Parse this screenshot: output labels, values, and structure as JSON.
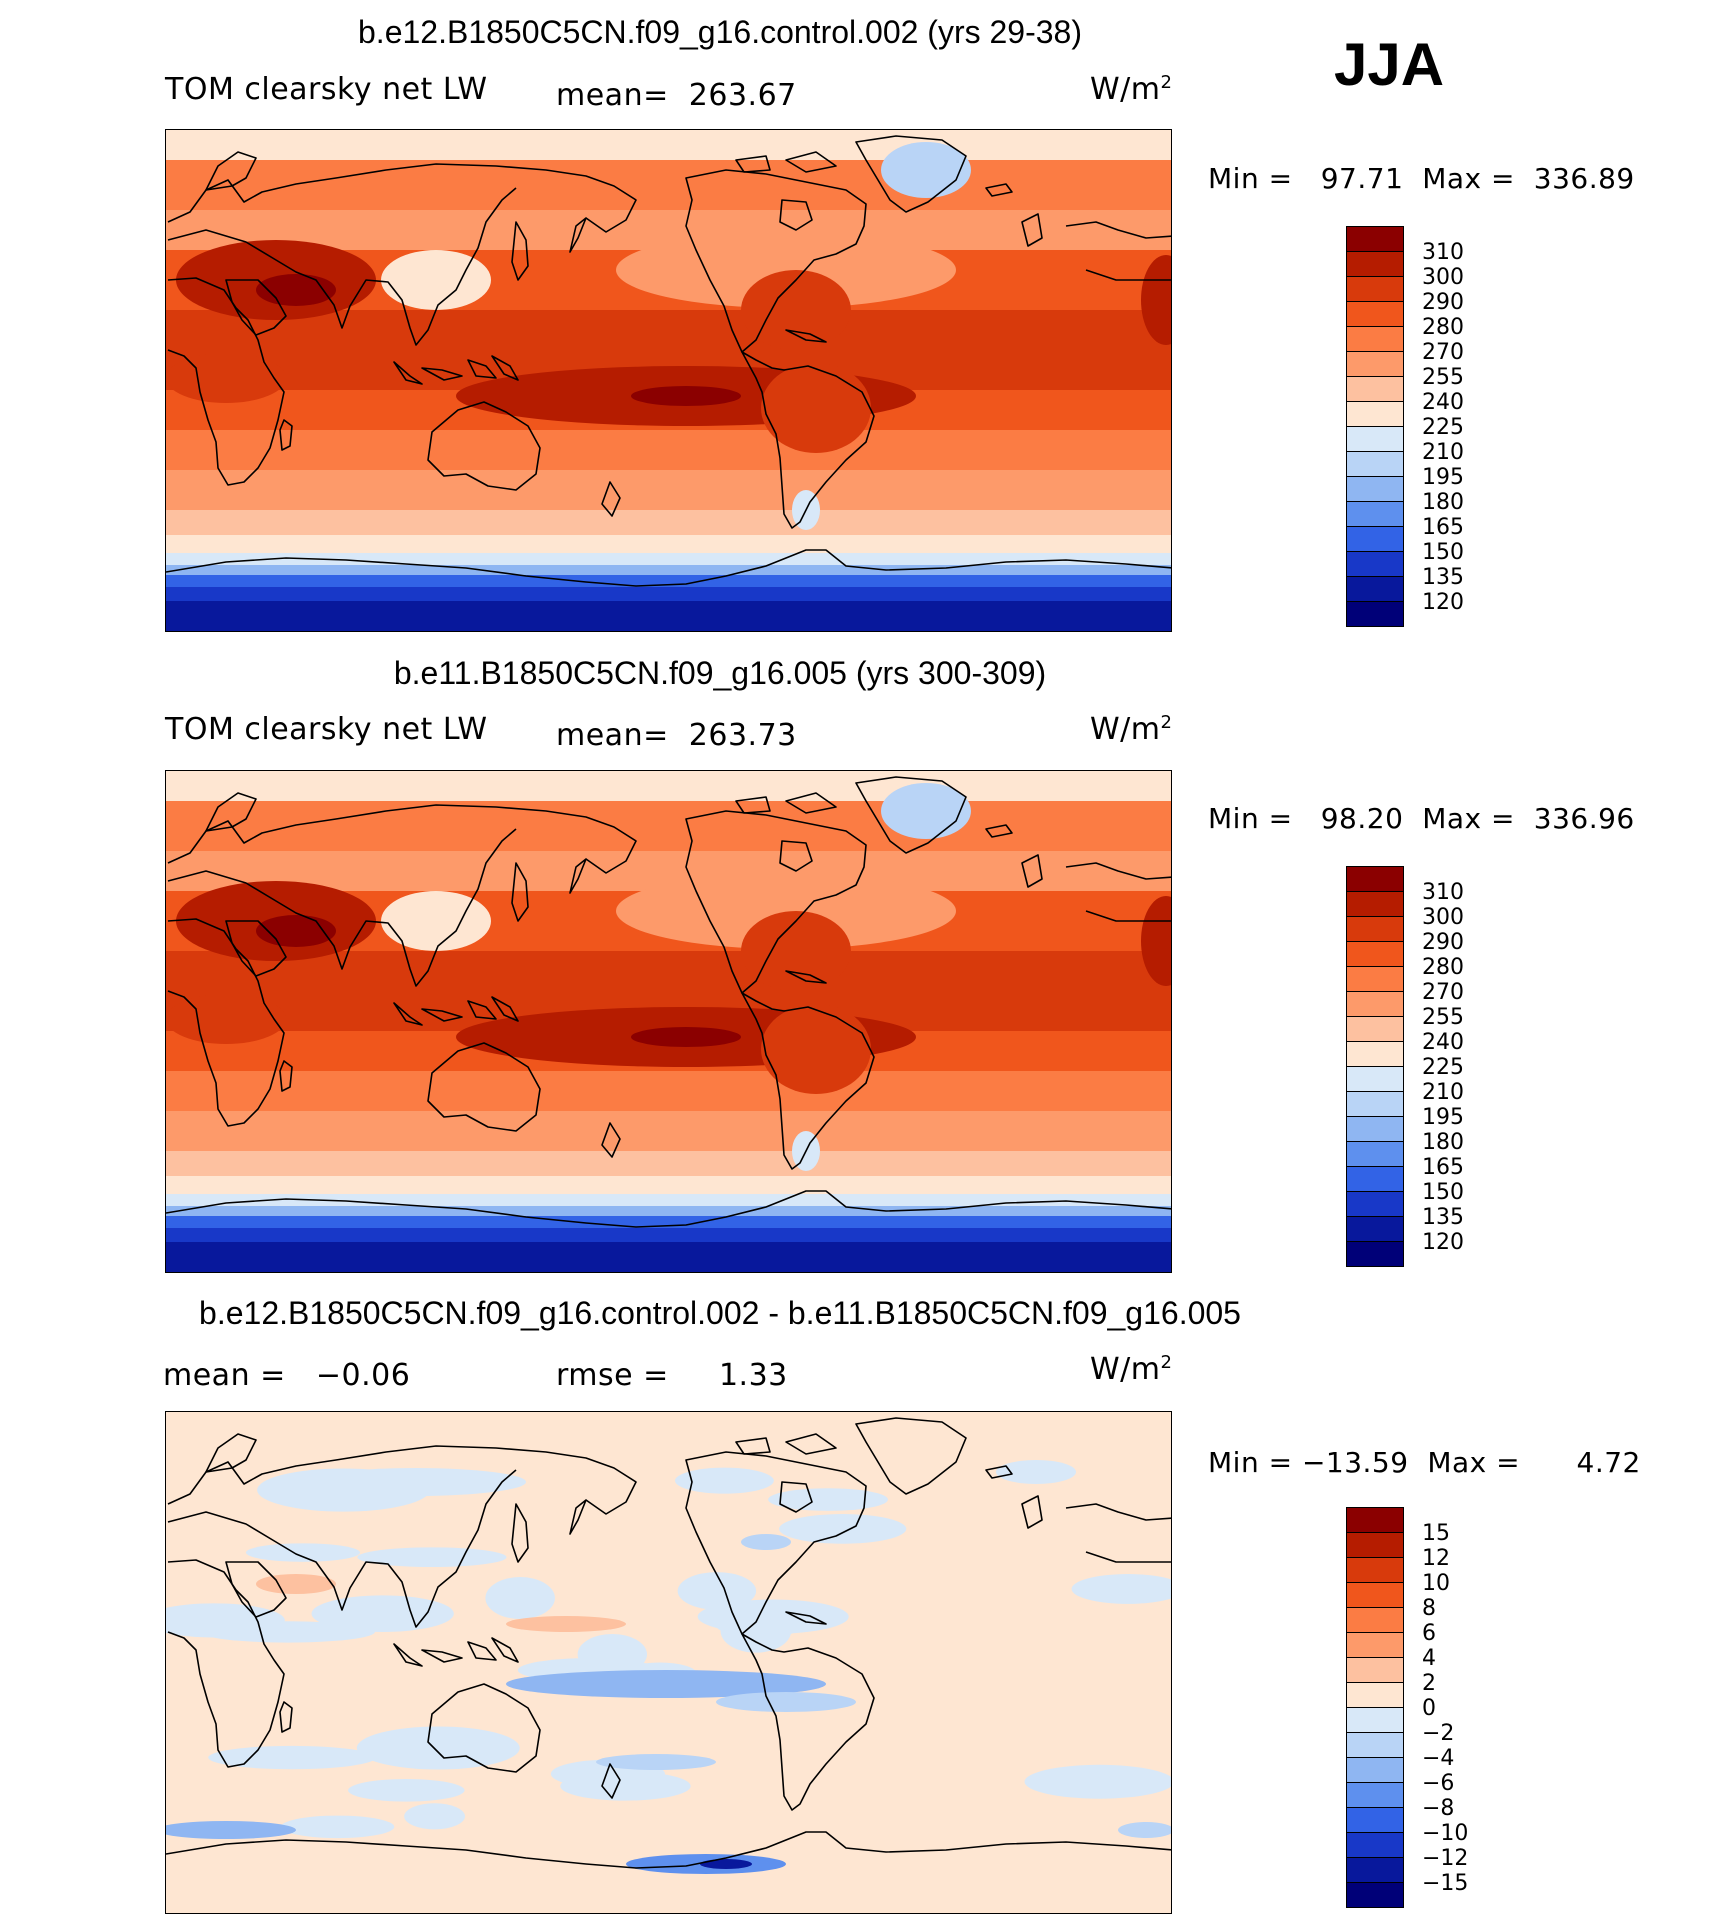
{
  "season": "JJA",
  "panels": [
    {
      "title": "b.e12.B1850C5CN.f09_g16.control.002 (yrs 29-38)",
      "left_label": "TOM clearsky net LW",
      "mid_label": "mean=  263.67",
      "units": "W/m",
      "units_sup": "2",
      "minmax": "Min =   97.71  Max =  336.89"
    },
    {
      "title": "b.e11.B1850C5CN.f09_g16.005 (yrs 300-309)",
      "left_label": "TOM clearsky net LW",
      "mid_label": "mean=  263.73",
      "units": "W/m",
      "units_sup": "2",
      "minmax": "Min =   98.20  Max =  336.96"
    },
    {
      "title": "b.e12.B1850C5CN.f09_g16.control.002 - b.e11.B1850C5CN.f09_g16.005",
      "left_label": "mean =   −0.06",
      "mid_label": "rmse =     1.33",
      "units": "W/m",
      "units_sup": "2",
      "minmax": "Min = −13.59  Max =      4.72"
    }
  ],
  "chart_data": [
    {
      "type": "heatmap",
      "title": "b.e12.B1850C5CN.f09_g16.control.002 (yrs 29-38)",
      "variable": "TOM clearsky net LW",
      "units": "W/m2",
      "mean": 263.67,
      "min": 97.71,
      "max": 336.89,
      "colorbar_levels": [
        "310",
        "300",
        "290",
        "280",
        "270",
        "255",
        "240",
        "225",
        "210",
        "195",
        "180",
        "165",
        "150",
        "135",
        "120"
      ],
      "colorbar_colors": [
        "#8b0000",
        "#b51c00",
        "#d83a0c",
        "#f0561c",
        "#fb7c44",
        "#fd9a6a",
        "#fdc1a0",
        "#fee6d2",
        "#d8e8f8",
        "#b9d4f6",
        "#8fb6f2",
        "#5e90ee",
        "#3263e6",
        "#1838c8",
        "#08189c",
        "#000078"
      ],
      "field_levels": {
        "north_polar": 225,
        "north_mid": 255,
        "subtropics": 280,
        "tropics": 290,
        "warm_pool": 300,
        "south_mid": 255,
        "southern_ocean": 210,
        "antarctica": 120,
        "greenland": 195,
        "tibet": 225,
        "sahara_arabia": 310
      }
    },
    {
      "type": "heatmap",
      "title": "b.e11.B1850C5CN.f09_g16.005 (yrs 300-309)",
      "variable": "TOM clearsky net LW",
      "units": "W/m2",
      "mean": 263.73,
      "min": 98.2,
      "max": 336.96,
      "colorbar_levels": [
        "310",
        "300",
        "290",
        "280",
        "270",
        "255",
        "240",
        "225",
        "210",
        "195",
        "180",
        "165",
        "150",
        "135",
        "120"
      ],
      "colorbar_colors": [
        "#8b0000",
        "#b51c00",
        "#d83a0c",
        "#f0561c",
        "#fb7c44",
        "#fd9a6a",
        "#fdc1a0",
        "#fee6d2",
        "#d8e8f8",
        "#b9d4f6",
        "#8fb6f2",
        "#5e90ee",
        "#3263e6",
        "#1838c8",
        "#08189c",
        "#000078"
      ],
      "field_levels": {
        "north_polar": 225,
        "north_mid": 255,
        "subtropics": 280,
        "tropics": 290,
        "warm_pool": 300,
        "south_mid": 255,
        "southern_ocean": 210,
        "antarctica": 120,
        "greenland": 195,
        "tibet": 225,
        "sahara_arabia": 310
      }
    },
    {
      "type": "heatmap",
      "title": "b.e12.B1850C5CN.f09_g16.control.002 - b.e11.B1850C5CN.f09_g16.005",
      "units": "W/m2",
      "mean": -0.06,
      "rmse": 1.33,
      "min": -13.59,
      "max": 4.72,
      "colorbar_levels": [
        "15",
        "12",
        "10",
        "8",
        "6",
        "4",
        "2",
        "0",
        "−2",
        "−4",
        "−6",
        "−8",
        "−10",
        "−12",
        "−15"
      ],
      "colorbar_colors": [
        "#8b0000",
        "#b51c00",
        "#d83a0c",
        "#f0561c",
        "#fb7c44",
        "#fd9a6a",
        "#fdc1a0",
        "#fee6d2",
        "#d8e8f8",
        "#b9d4f6",
        "#8fb6f2",
        "#5e90ee",
        "#3263e6",
        "#1838c8",
        "#08189c",
        "#000078"
      ],
      "field_levels": {
        "background": 0,
        "ocean_negative": -2,
        "southern_ocean_band": -8,
        "pacific_band": -6,
        "arabia_positive": 2,
        "antarctic_min": -15
      }
    }
  ]
}
